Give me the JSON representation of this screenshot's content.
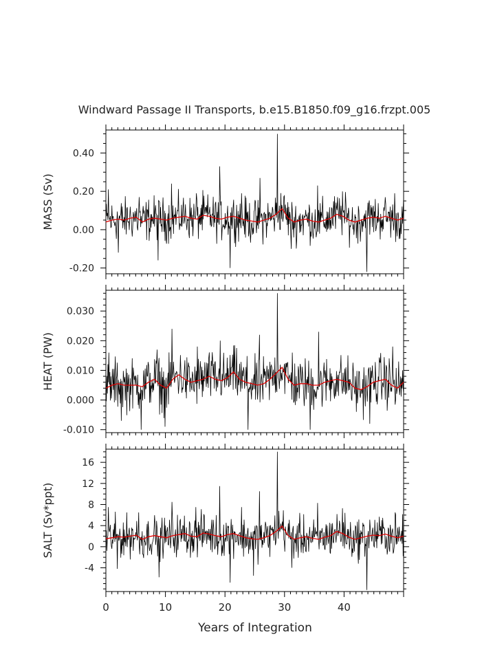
{
  "title": "Windward Passage II Transports, b.e15.B1850.f09_g16.frzpt.005",
  "chart_data": {
    "type": "line",
    "title": "Windward Passage II Transports, b.e15.B1850.f09_g16.frzpt.005",
    "xlabel": "Years of Integration",
    "xlim": [
      0,
      50
    ],
    "xticks": [
      0,
      10,
      20,
      30,
      40
    ],
    "xtick_labels": [
      "0",
      "10",
      "20",
      "30",
      "40"
    ],
    "grid": false,
    "series_note_colors": {
      "monthly": "#000000",
      "smoothed": "#e00000"
    },
    "panels": [
      {
        "ylabel": "MASS (Sv)",
        "ylim": [
          -0.23,
          0.52
        ],
        "yticks": [
          -0.2,
          0,
          0.2,
          0.4
        ],
        "ytick_labels": [
          "-0.20",
          "0.00",
          "0.20",
          "0.40"
        ],
        "yminor": 0.05,
        "base": 0.05,
        "amp": 0.055,
        "smooth_values": [
          0.04,
          0.05,
          0.055,
          0.05,
          0.06,
          0.065,
          0.04,
          0.055,
          0.06,
          0.055,
          0.05,
          0.06,
          0.065,
          0.07,
          0.06,
          0.055,
          0.075,
          0.07,
          0.06,
          0.055,
          0.065,
          0.07,
          0.06,
          0.05,
          0.045,
          0.04,
          0.05,
          0.06,
          0.08,
          0.11,
          0.06,
          0.04,
          0.05,
          0.055,
          0.045,
          0.04,
          0.05,
          0.06,
          0.08,
          0.07,
          0.05,
          0.04,
          0.05,
          0.06,
          0.065,
          0.06,
          0.07,
          0.06,
          0.05,
          0.06
        ],
        "spikes": [
          [
            0.4,
            0.21
          ],
          [
            2.1,
            -0.12
          ],
          [
            5.6,
            0.17
          ],
          [
            8.8,
            -0.16
          ],
          [
            11,
            0.24
          ],
          [
            15.2,
            0.19
          ],
          [
            19.1,
            0.33
          ],
          [
            20.9,
            -0.2
          ],
          [
            22.8,
            0.19
          ],
          [
            25.9,
            0.27
          ],
          [
            28.8,
            0.5
          ],
          [
            31.1,
            -0.1
          ],
          [
            35.6,
            0.23
          ],
          [
            39.7,
            0.2
          ],
          [
            43.8,
            -0.22
          ],
          [
            48.5,
            0.19
          ]
        ]
      },
      {
        "ylabel": "HEAT (PW)",
        "ylim": [
          -0.011,
          0.037
        ],
        "yticks": [
          -0.01,
          0,
          0.01,
          0.02,
          0.03
        ],
        "ytick_labels": [
          "-0.010",
          "0.000",
          "0.010",
          "0.020",
          "0.030"
        ],
        "yminor": 0.002,
        "base": 0.006,
        "amp": 0.0042,
        "smooth_values": [
          0.004,
          0.005,
          0.0055,
          0.005,
          0.005,
          0.005,
          0.0045,
          0.006,
          0.007,
          0.005,
          0.004,
          0.007,
          0.0085,
          0.007,
          0.006,
          0.0065,
          0.007,
          0.008,
          0.007,
          0.0065,
          0.0075,
          0.0095,
          0.007,
          0.006,
          0.0055,
          0.005,
          0.0055,
          0.007,
          0.009,
          0.011,
          0.007,
          0.005,
          0.0055,
          0.0055,
          0.005,
          0.005,
          0.006,
          0.0065,
          0.007,
          0.0065,
          0.006,
          0.004,
          0.0035,
          0.0045,
          0.006,
          0.0065,
          0.007,
          0.005,
          0.004,
          0.006
        ],
        "spikes": [
          [
            0.5,
            0.016
          ],
          [
            2.6,
            -0.007
          ],
          [
            5.9,
            -0.01
          ],
          [
            8.6,
            0.017
          ],
          [
            9.9,
            -0.009
          ],
          [
            11.1,
            0.024
          ],
          [
            15.4,
            0.018
          ],
          [
            19.2,
            0.02
          ],
          [
            23.9,
            -0.01
          ],
          [
            25.8,
            0.022
          ],
          [
            28.8,
            0.036
          ],
          [
            31.3,
            0.016
          ],
          [
            34.3,
            -0.01
          ],
          [
            35.7,
            0.023
          ],
          [
            44.3,
            -0.008
          ],
          [
            48.2,
            0.018
          ]
        ]
      },
      {
        "ylabel": "SALT (Sv*ppt)",
        "ylim": [
          -8.5,
          18.5
        ],
        "yticks": [
          -4,
          0,
          4,
          8,
          12,
          16
        ],
        "ytick_labels": [
          "-4",
          "0",
          "4",
          "8",
          "12",
          "16"
        ],
        "yminor": 1,
        "base": 1.8,
        "amp": 1.9,
        "smooth_values": [
          1.5,
          1.7,
          1.9,
          1.8,
          2.0,
          2.2,
          1.4,
          1.9,
          2.1,
          1.9,
          1.7,
          2.1,
          2.3,
          2.5,
          2.0,
          1.9,
          2.6,
          2.4,
          2.1,
          1.9,
          2.3,
          2.5,
          2.1,
          1.7,
          1.5,
          1.4,
          1.7,
          2.1,
          2.9,
          3.9,
          2.1,
          1.4,
          1.7,
          1.9,
          1.6,
          1.4,
          1.8,
          2.1,
          2.9,
          2.5,
          1.8,
          1.4,
          1.7,
          2.0,
          2.2,
          2.1,
          2.4,
          2.0,
          1.7,
          2.0
        ],
        "spikes": [
          [
            0.4,
            7.5
          ],
          [
            1.9,
            -4.2
          ],
          [
            5.5,
            6.5
          ],
          [
            8.9,
            -5.8
          ],
          [
            11.1,
            8.5
          ],
          [
            15.1,
            7.5
          ],
          [
            19.1,
            11.5
          ],
          [
            20.9,
            -6.8
          ],
          [
            22.8,
            7.5
          ],
          [
            24.8,
            -5.5
          ],
          [
            25.8,
            10.5
          ],
          [
            28.8,
            18.0
          ],
          [
            31.2,
            -4.0
          ],
          [
            35.6,
            8.3
          ],
          [
            39.7,
            7.3
          ],
          [
            43.8,
            -8.2
          ],
          [
            48.6,
            6.5
          ]
        ]
      }
    ]
  }
}
